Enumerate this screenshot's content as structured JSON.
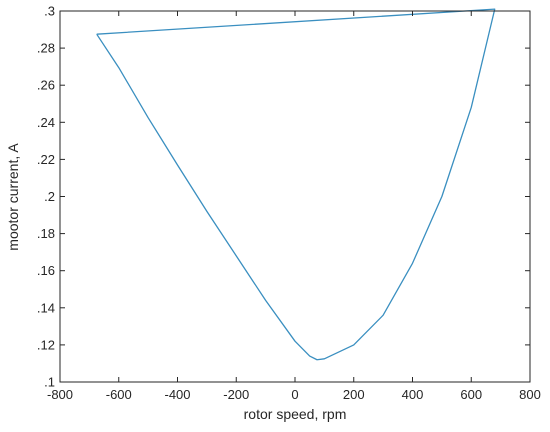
{
  "chart_data": {
    "type": "line",
    "title": "",
    "xlabel": "rotor speed, rpm",
    "ylabel": "mootor current, A",
    "xlim": [
      -800,
      800
    ],
    "ylim": [
      0.1,
      0.3
    ],
    "xticks": [
      -800,
      -600,
      -400,
      -200,
      0,
      200,
      400,
      600,
      800
    ],
    "yticks": [
      0.1,
      0.12,
      0.14,
      0.16,
      0.18,
      0.2,
      0.22,
      0.24,
      0.26,
      0.28,
      0.3
    ],
    "grid": false,
    "legend": "none",
    "series": [
      {
        "color": "#3a8fc0",
        "x": [
          -675,
          -600,
          -500,
          -400,
          -300,
          -200,
          -100,
          0,
          50,
          75,
          100,
          200,
          300,
          400,
          500,
          600,
          680,
          -675
        ],
        "y": [
          0.2875,
          0.2695,
          0.2425,
          0.217,
          0.192,
          0.168,
          0.144,
          0.122,
          0.114,
          0.112,
          0.1125,
          0.12,
          0.136,
          0.164,
          0.2,
          0.248,
          0.301,
          0.2875
        ]
      }
    ]
  }
}
